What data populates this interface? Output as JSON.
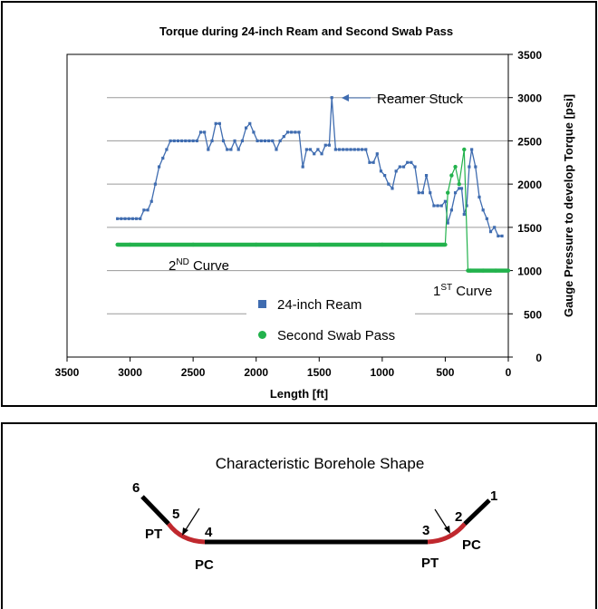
{
  "chart_data": {
    "type": "line",
    "title": "Torque during 24-inch Ream and Second Swab Pass",
    "xlabel": "Length [ft]",
    "ylabel": "Gauge Pressure to develop Torque [psi]",
    "xlim": [
      3500,
      0
    ],
    "ylim": [
      0,
      3500
    ],
    "x_ticks": [
      "3500",
      "3000",
      "2500",
      "2000",
      "1500",
      "1000",
      "500",
      "0"
    ],
    "y_ticks": [
      "0",
      "500",
      "1000",
      "1500",
      "2000",
      "2500",
      "3000",
      "3500"
    ],
    "legend_position": "bottom-center",
    "series": [
      {
        "name": "24-inch Ream",
        "color": "#3f6cb0",
        "marker": "square",
        "points": [
          [
            3100,
            1600
          ],
          [
            3070,
            1600
          ],
          [
            3040,
            1600
          ],
          [
            3010,
            1600
          ],
          [
            2980,
            1600
          ],
          [
            2950,
            1600
          ],
          [
            2920,
            1600
          ],
          [
            2890,
            1700
          ],
          [
            2860,
            1700
          ],
          [
            2830,
            1800
          ],
          [
            2800,
            2000
          ],
          [
            2770,
            2200
          ],
          [
            2740,
            2300
          ],
          [
            2710,
            2400
          ],
          [
            2680,
            2500
          ],
          [
            2650,
            2500
          ],
          [
            2620,
            2500
          ],
          [
            2590,
            2500
          ],
          [
            2560,
            2500
          ],
          [
            2530,
            2500
          ],
          [
            2500,
            2500
          ],
          [
            2470,
            2500
          ],
          [
            2440,
            2600
          ],
          [
            2410,
            2600
          ],
          [
            2380,
            2400
          ],
          [
            2350,
            2500
          ],
          [
            2320,
            2700
          ],
          [
            2290,
            2700
          ],
          [
            2260,
            2500
          ],
          [
            2230,
            2400
          ],
          [
            2200,
            2400
          ],
          [
            2170,
            2500
          ],
          [
            2140,
            2400
          ],
          [
            2110,
            2500
          ],
          [
            2080,
            2650
          ],
          [
            2050,
            2700
          ],
          [
            2020,
            2600
          ],
          [
            1990,
            2500
          ],
          [
            1960,
            2500
          ],
          [
            1930,
            2500
          ],
          [
            1900,
            2500
          ],
          [
            1870,
            2500
          ],
          [
            1840,
            2400
          ],
          [
            1810,
            2500
          ],
          [
            1780,
            2550
          ],
          [
            1750,
            2600
          ],
          [
            1720,
            2600
          ],
          [
            1690,
            2600
          ],
          [
            1660,
            2600
          ],
          [
            1630,
            2200
          ],
          [
            1600,
            2400
          ],
          [
            1570,
            2400
          ],
          [
            1540,
            2350
          ],
          [
            1510,
            2400
          ],
          [
            1480,
            2350
          ],
          [
            1450,
            2450
          ],
          [
            1420,
            2450
          ],
          [
            1400,
            3000
          ],
          [
            1370,
            2400
          ],
          [
            1340,
            2400
          ],
          [
            1310,
            2400
          ],
          [
            1280,
            2400
          ],
          [
            1250,
            2400
          ],
          [
            1220,
            2400
          ],
          [
            1190,
            2400
          ],
          [
            1160,
            2400
          ],
          [
            1130,
            2400
          ],
          [
            1100,
            2250
          ],
          [
            1070,
            2250
          ],
          [
            1040,
            2350
          ],
          [
            1010,
            2150
          ],
          [
            980,
            2100
          ],
          [
            950,
            2000
          ],
          [
            920,
            1950
          ],
          [
            890,
            2150
          ],
          [
            860,
            2200
          ],
          [
            830,
            2200
          ],
          [
            800,
            2250
          ],
          [
            770,
            2250
          ],
          [
            740,
            2200
          ],
          [
            710,
            1900
          ],
          [
            680,
            1900
          ],
          [
            650,
            2100
          ],
          [
            620,
            1900
          ],
          [
            590,
            1750
          ],
          [
            560,
            1750
          ],
          [
            530,
            1750
          ],
          [
            500,
            1800
          ],
          [
            480,
            1550
          ],
          [
            450,
            1700
          ],
          [
            420,
            1900
          ],
          [
            390,
            1950
          ],
          [
            370,
            1950
          ],
          [
            350,
            1650
          ],
          [
            330,
            1750
          ],
          [
            310,
            2200
          ],
          [
            290,
            2400
          ],
          [
            260,
            2200
          ],
          [
            230,
            1850
          ],
          [
            200,
            1700
          ],
          [
            170,
            1600
          ],
          [
            140,
            1450
          ],
          [
            110,
            1500
          ],
          [
            80,
            1400
          ],
          [
            50,
            1400
          ]
        ]
      },
      {
        "name": "Second Swab Pass",
        "color": "#22b24c",
        "marker": "circle",
        "points": [
          [
            3100,
            1300
          ],
          [
            3000,
            1300
          ],
          [
            2500,
            1300
          ],
          [
            2000,
            1300
          ],
          [
            1500,
            1300
          ],
          [
            1000,
            1300
          ],
          [
            500,
            1300
          ],
          [
            480,
            1900
          ],
          [
            450,
            2100
          ],
          [
            420,
            2200
          ],
          [
            390,
            2000
          ],
          [
            350,
            2400
          ],
          [
            320,
            1000
          ],
          [
            300,
            1000
          ],
          [
            200,
            1000
          ],
          [
            100,
            1000
          ],
          [
            0,
            1000
          ]
        ]
      }
    ],
    "annotations": {
      "reamer_stuck": "Reamer Stuck",
      "second_curve_main": "2",
      "second_curve_sup": "ND",
      "second_curve_rest": " Curve",
      "first_curve_main": "1",
      "first_curve_sup": "ST",
      "first_curve_rest": " Curve"
    }
  },
  "diagram": {
    "title": "Characteristic Borehole Shape",
    "labels": {
      "n1": "1",
      "n2": "2",
      "n3": "3",
      "n4": "4",
      "n5": "5",
      "n6": "6",
      "pt_left": "PT",
      "pc_left": "PC",
      "pt_right": "PT",
      "pc_right": "PC"
    }
  }
}
